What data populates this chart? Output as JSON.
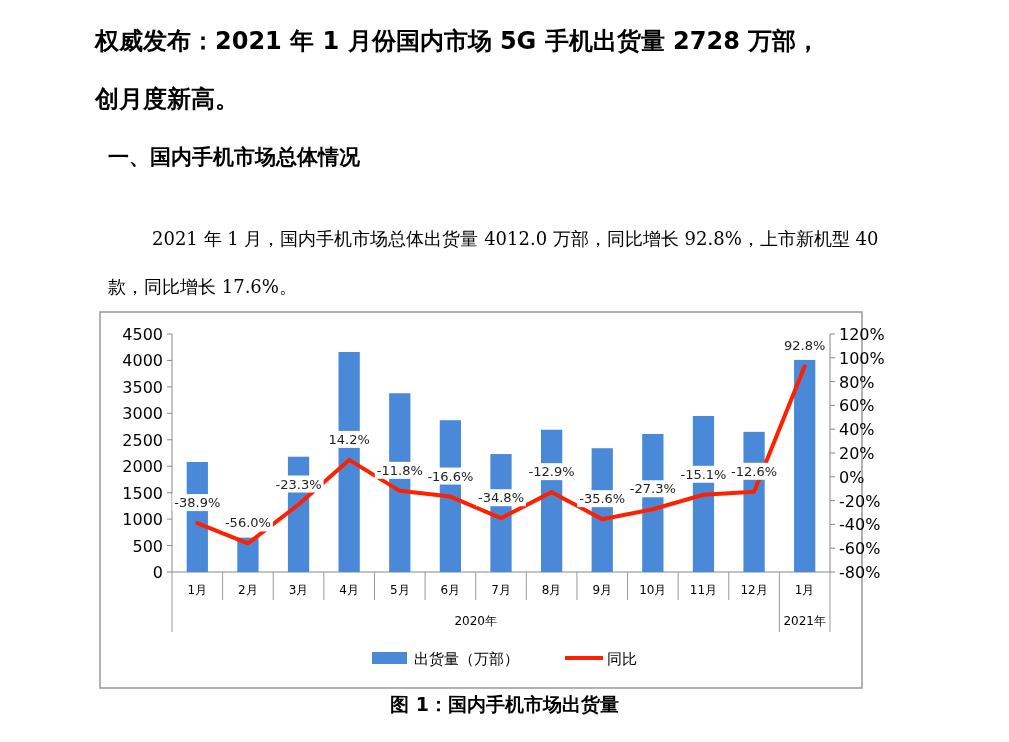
{
  "chart_data": {
    "type": "bar",
    "title": "权威发布：2021 年 1 月份国内市场 5G 手机出货量 2728 万部，创月度新高。",
    "subtitle": "一、国内手机市场总体情况",
    "annotations": [
      "2021 年 1 月，国内手机市场总体出货量 4012.0 万部，同比增长 92.8%，上市新机型 40 款，同比增长 17.6%。",
      "2020年",
      "2021年",
      "图 1：国内手机市场出货量"
    ],
    "categories": [
      "1月",
      "2月",
      "3月",
      "4月",
      "5月",
      "6月",
      "7月",
      "8月",
      "9月",
      "10月",
      "11月",
      "12月",
      "1月"
    ],
    "series": [
      {
        "name": "出货量（万部）",
        "color": "#4a89d8",
        "values": [
          2080,
          650,
          2180,
          4160,
          3380,
          2870,
          2230,
          2690,
          2340,
          2610,
          2950,
          2650,
          4010
        ]
      },
      {
        "name": "同比",
        "type": "line",
        "axis": "y2",
        "color": "#ff2000",
        "values": [
          -38.9,
          -56.0,
          -23.3,
          14.2,
          -11.8,
          -16.6,
          -34.8,
          -12.9,
          -35.6,
          -27.3,
          -15.1,
          -12.6,
          92.8
        ],
        "value_labels": [
          "-38.9%",
          "-56.0%",
          "-23.3%",
          "14.2%",
          "-11.8%",
          "-16.6%",
          "-34.8%",
          "-12.9%",
          "-35.6%",
          "-27.3%",
          "-15.1%",
          "-12.6%",
          "92.8%"
        ]
      }
    ],
    "ylim": [
      0,
      4500
    ],
    "yticks": [
      0,
      500,
      1000,
      1500,
      2000,
      2500,
      3000,
      3500,
      4000,
      4500
    ],
    "y2lim": [
      -80,
      120
    ],
    "y2ticks": [
      {
        "value": -80,
        "label": "-80%"
      },
      {
        "value": -60,
        "label": "-60%"
      },
      {
        "value": -40,
        "label": "-40%"
      },
      {
        "value": -20,
        "label": "-20%"
      },
      {
        "value": 0,
        "label": "0%"
      },
      {
        "value": 20,
        "label": "20%"
      },
      {
        "value": 40,
        "label": "40%"
      },
      {
        "value": 60,
        "label": "60%"
      },
      {
        "value": 80,
        "label": "80%"
      },
      {
        "value": 100,
        "label": "100%"
      },
      {
        "value": 120,
        "label": "120%"
      }
    ],
    "legend": "bottom",
    "grid": false
  }
}
